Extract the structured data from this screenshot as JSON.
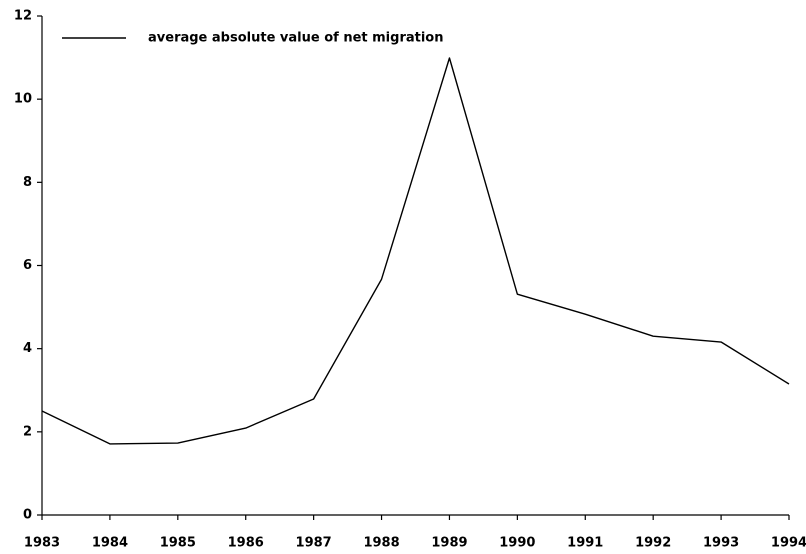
{
  "chart_data": {
    "type": "line",
    "x": [
      1983,
      1984,
      1985,
      1986,
      1987,
      1988,
      1989,
      1990,
      1991,
      1992,
      1993,
      1994
    ],
    "series": [
      {
        "name": "average absolute value of net migration",
        "color": "#000000",
        "values": [
          2.5,
          1.71,
          1.73,
          2.09,
          2.79,
          5.67,
          10.99,
          5.31,
          4.83,
          4.3,
          4.16,
          3.15
        ]
      }
    ],
    "xlim": [
      1983,
      1994
    ],
    "xticks": [
      1983,
      1984,
      1985,
      1986,
      1987,
      1988,
      1989,
      1990,
      1991,
      1992,
      1993,
      1994
    ],
    "ylim": [
      0,
      12
    ],
    "yticks": [
      0,
      2,
      4,
      6,
      8,
      10,
      12
    ],
    "legend": "top-left",
    "grid": false
  }
}
